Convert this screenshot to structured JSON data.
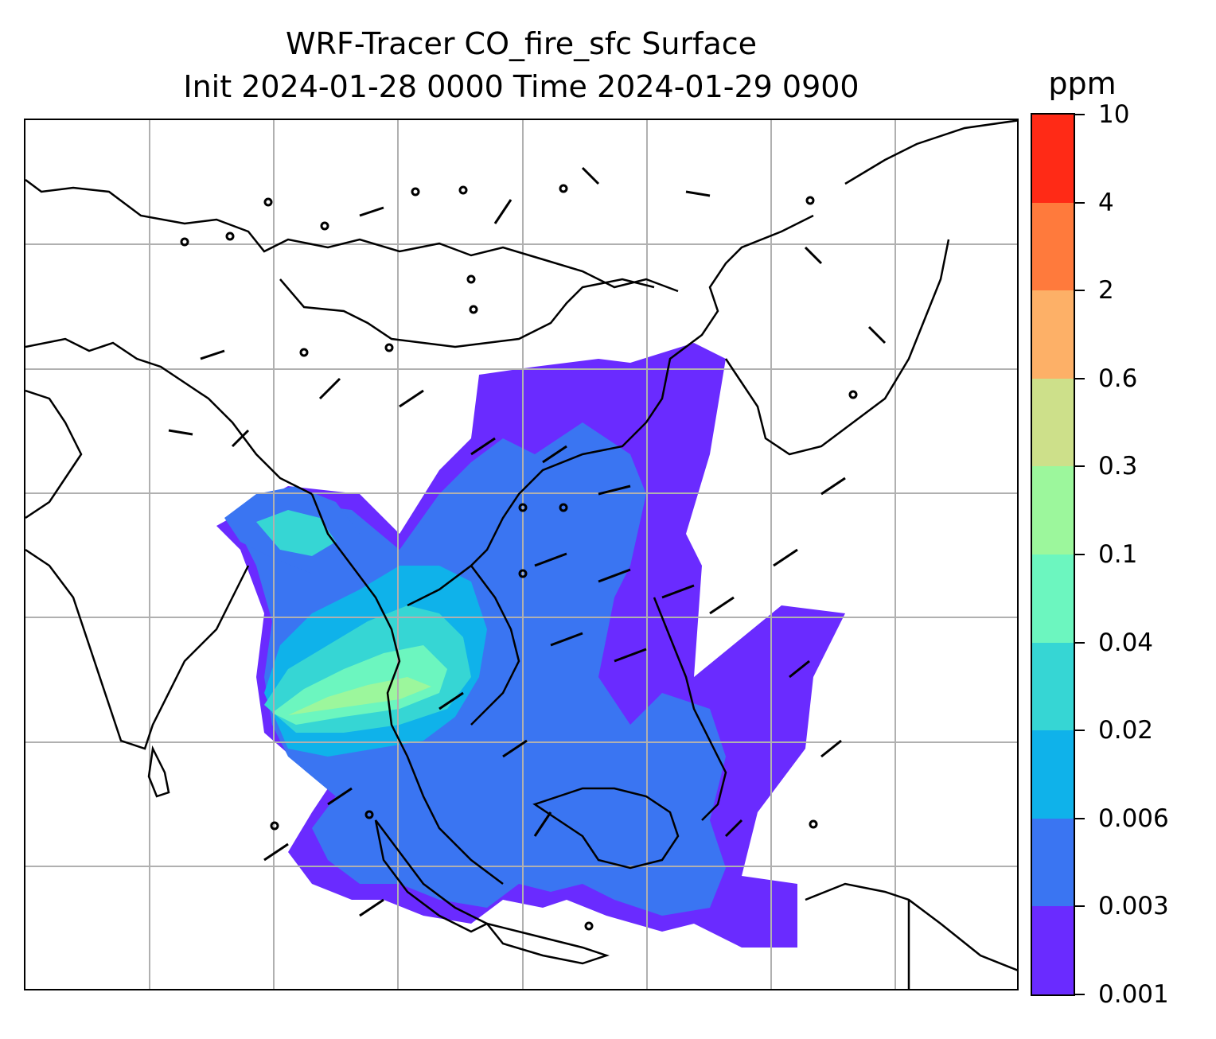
{
  "title": {
    "line1": "WRF-Tracer CO_fire_sfc Surface",
    "line2": "Init 2024-01-28 0000 Time 2024-01-29 0900"
  },
  "colorbar": {
    "unit": "ppm",
    "levels": [
      "0.001",
      "0.003",
      "0.006",
      "0.02",
      "0.04",
      "0.1",
      "0.3",
      "0.6",
      "2",
      "4",
      "10"
    ],
    "colors": [
      "#6a2bff",
      "#3a75f2",
      "#0fb2ea",
      "#36d6d4",
      "#6cf6bf",
      "#9cf79c",
      "#cde08a",
      "#fdb067",
      "#ff7a3c",
      "#ff2a16"
    ]
  },
  "map": {
    "gridline_color": "#b0b0b0",
    "coastline_color": "#000000",
    "field_colors": {
      "very_low": "#6a2bff",
      "low": "#3a75f2",
      "medium": "#0fb2ea",
      "medium_high": "#36d6d4",
      "high": "#6cf6bf",
      "very_high": "#9cf79c"
    }
  }
}
